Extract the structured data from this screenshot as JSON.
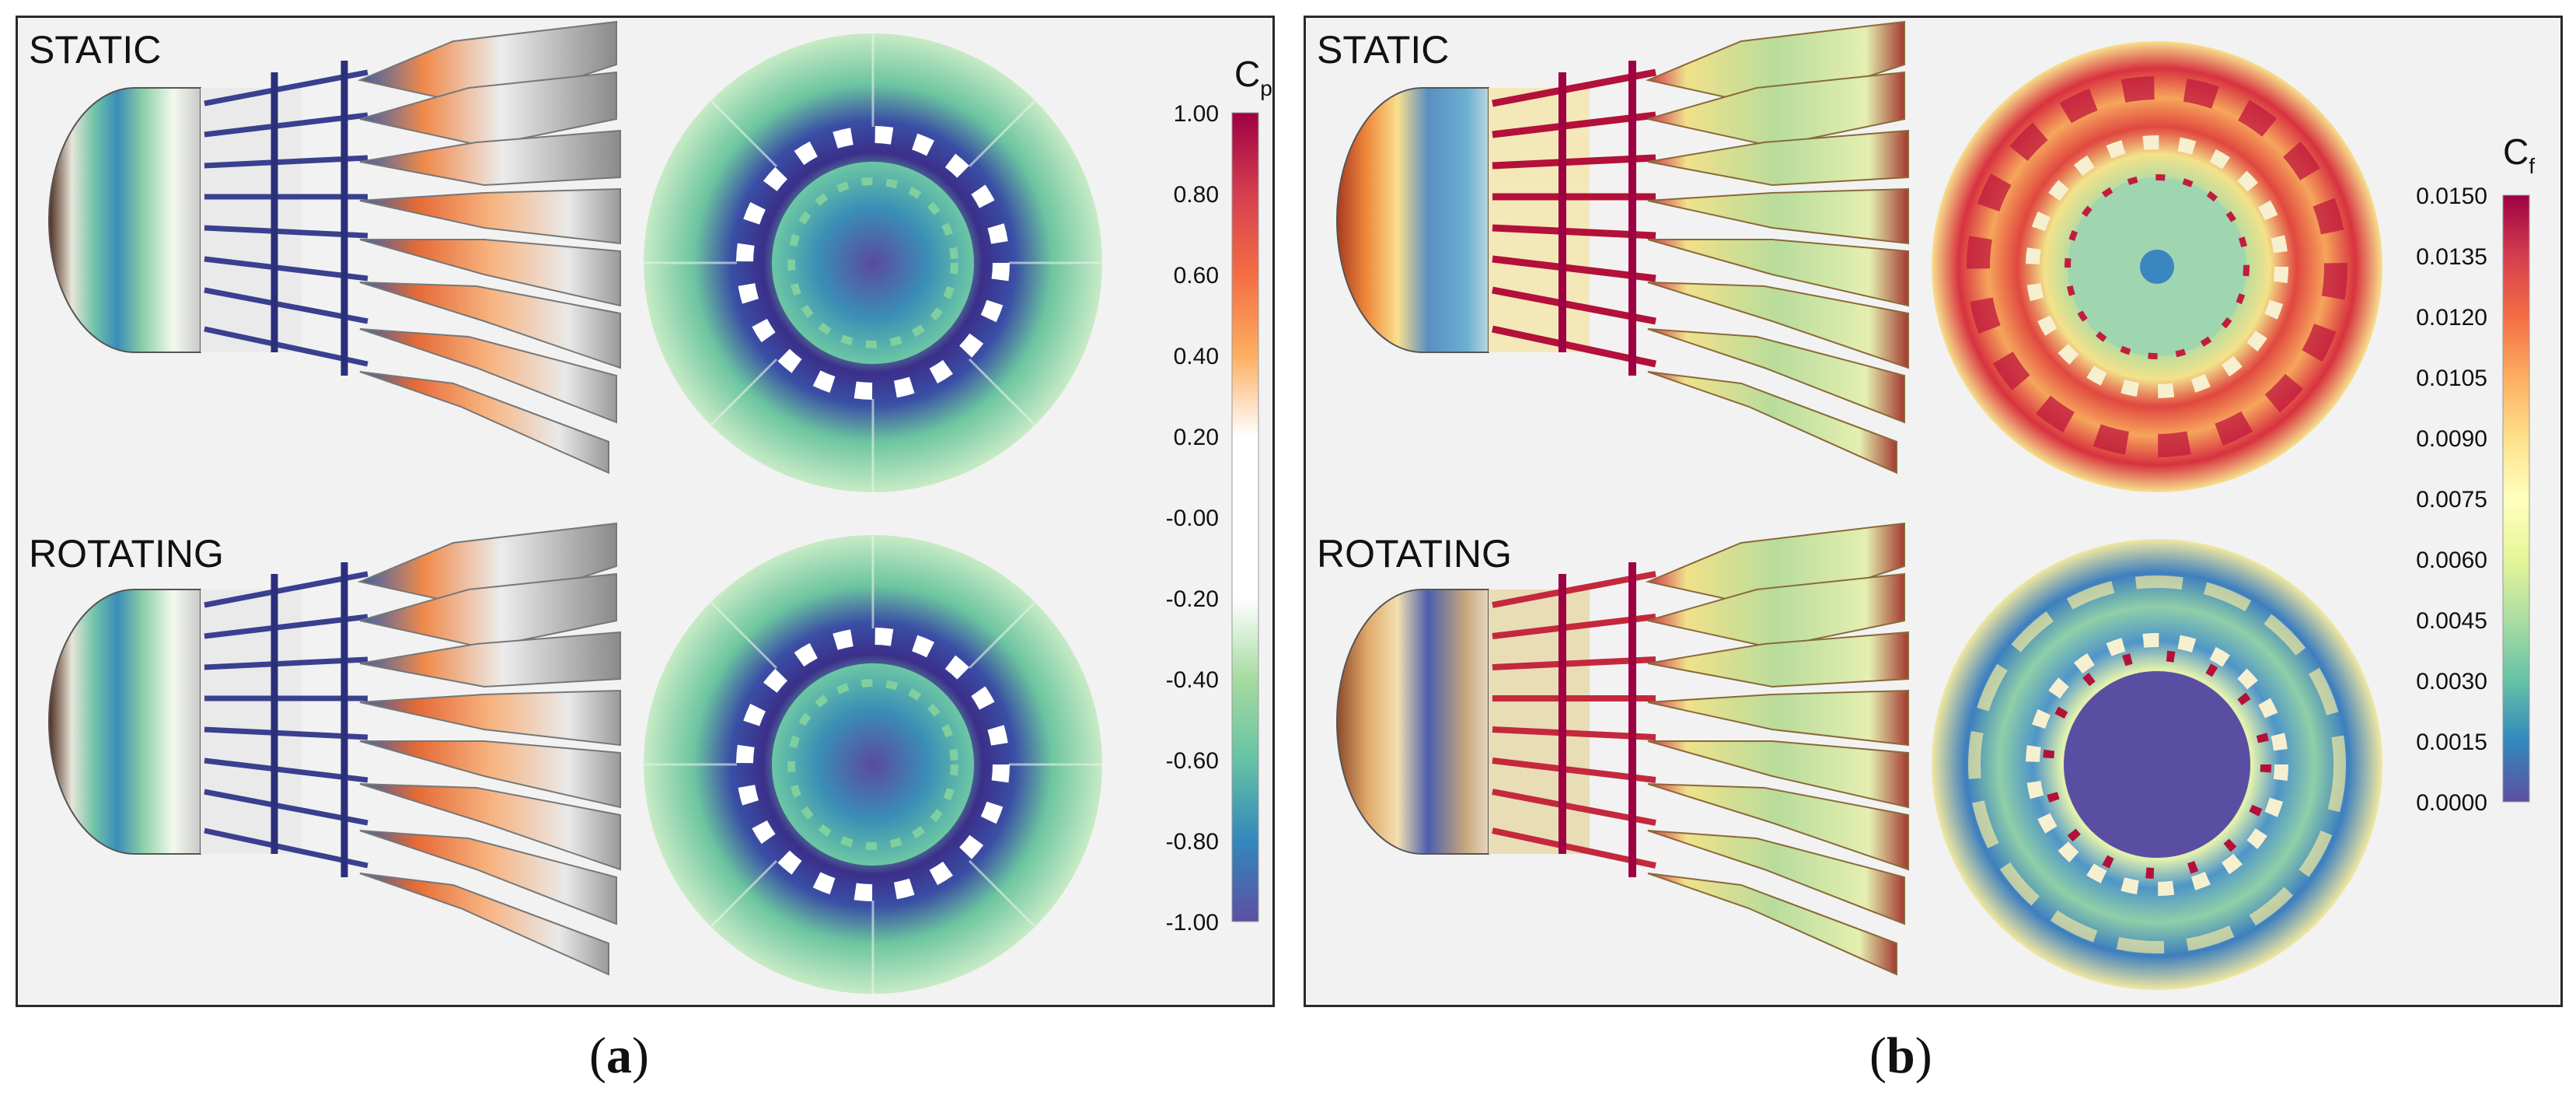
{
  "panels": [
    {
      "id": "a",
      "caption_letter": "a",
      "states": [
        "STATIC",
        "ROTATING"
      ],
      "colorbar": {
        "title_main": "C",
        "title_sub": "p",
        "ticks": [
          "1.00",
          "0.80",
          "0.60",
          "0.40",
          "0.20",
          "-0.00",
          "-0.20",
          "-0.40",
          "-0.60",
          "-0.80",
          "-1.00"
        ],
        "colors": [
          "#9e0142",
          "#d53e4f",
          "#f46d43",
          "#fdae61",
          "#ffffff",
          "#ffffff",
          "#ffffff",
          "#a6dba0",
          "#66c2a5",
          "#3288bd",
          "#5e4fa2"
        ]
      }
    },
    {
      "id": "b",
      "caption_letter": "b",
      "states": [
        "STATIC",
        "ROTATING"
      ],
      "colorbar": {
        "title_main": "C",
        "title_sub": "f",
        "ticks": [
          "0.0150",
          "0.0135",
          "0.0120",
          "0.0105",
          "0.0090",
          "0.0075",
          "0.0060",
          "0.0045",
          "0.0030",
          "0.0015",
          "0.0000"
        ],
        "colors": [
          "#9e0142",
          "#d53e4f",
          "#f46d43",
          "#fdae61",
          "#fee08b",
          "#ffffbf",
          "#e6f598",
          "#abdda4",
          "#66c2a5",
          "#3288bd",
          "#5e4fa2"
        ]
      }
    }
  ]
}
